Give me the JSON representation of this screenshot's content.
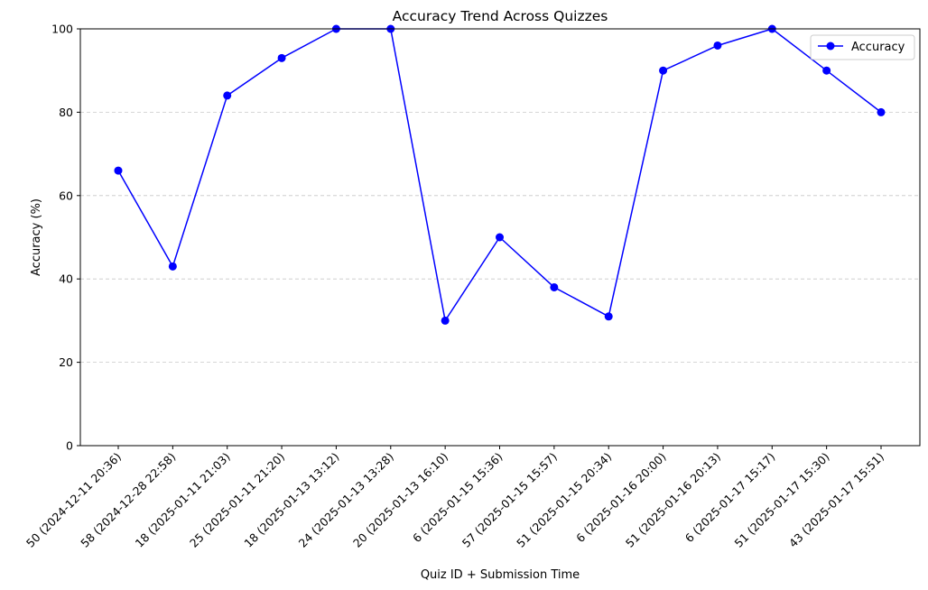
{
  "chart_data": {
    "type": "line",
    "title": "Accuracy Trend Across Quizzes",
    "xlabel": "Quiz ID + Submission Time",
    "ylabel": "Accuracy (%)",
    "ylim": [
      0,
      100
    ],
    "yticks": [
      0,
      20,
      40,
      60,
      80,
      100
    ],
    "grid": "y-dashed",
    "legend_position": "top-right",
    "categories": [
      "50 (2024-12-11 20:36)",
      "58 (2024-12-28 22:58)",
      "18 (2025-01-11 21:03)",
      "25 (2025-01-11 21:20)",
      "18 (2025-01-13 13:12)",
      "24 (2025-01-13 13:28)",
      "20 (2025-01-13 16:10)",
      "6 (2025-01-15 15:36)",
      "57 (2025-01-15 15:57)",
      "51 (2025-01-15 20:34)",
      "6 (2025-01-16 20:00)",
      "51 (2025-01-16 20:13)",
      "6 (2025-01-17 15:17)",
      "51 (2025-01-17 15:30)",
      "43 (2025-01-17 15:51)"
    ],
    "series": [
      {
        "name": "Accuracy",
        "color": "#0000ff",
        "marker": "circle",
        "values": [
          66,
          43,
          84,
          93,
          100,
          100,
          30,
          50,
          38,
          31,
          90,
          96,
          100,
          90,
          80
        ]
      }
    ]
  }
}
